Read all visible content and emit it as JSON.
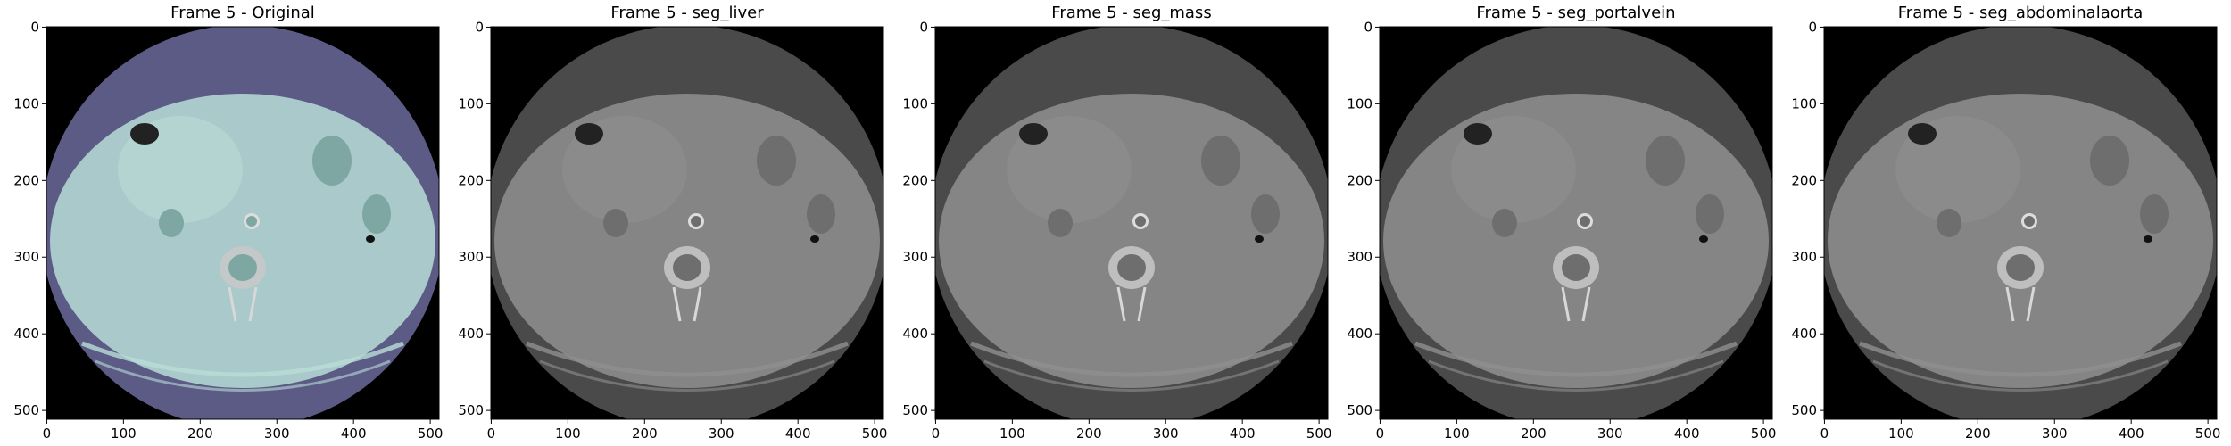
{
  "figure": {
    "panels": [
      {
        "title": "Frame 5 - Original",
        "tint": "#b9ddd6",
        "outer_ring_color": "#5b5b86",
        "x_ticks": [
          "0",
          "100",
          "200",
          "300",
          "400",
          "500"
        ],
        "y_ticks": [
          "0",
          "100",
          "200",
          "300",
          "400",
          "500"
        ]
      },
      {
        "title": "Frame 5 - seg_liver",
        "tint": "#8f8f8f",
        "outer_ring_color": "#4a4a4a",
        "x_ticks": [
          "0",
          "100",
          "200",
          "300",
          "400",
          "500"
        ],
        "y_ticks": [
          "0",
          "100",
          "200",
          "300",
          "400",
          "500"
        ]
      },
      {
        "title": "Frame 5 - seg_mass",
        "tint": "#8f8f8f",
        "outer_ring_color": "#4a4a4a",
        "x_ticks": [
          "0",
          "100",
          "200",
          "300",
          "400",
          "500"
        ],
        "y_ticks": [
          "0",
          "100",
          "200",
          "300",
          "400",
          "500"
        ]
      },
      {
        "title": "Frame 5 - seg_portalvein",
        "tint": "#8f8f8f",
        "outer_ring_color": "#4a4a4a",
        "x_ticks": [
          "0",
          "100",
          "200",
          "300",
          "400",
          "500"
        ],
        "y_ticks": [
          "0",
          "100",
          "200",
          "300",
          "400",
          "500"
        ]
      },
      {
        "title": "Frame 5 - seg_abdominalaorta",
        "tint": "#8f8f8f",
        "outer_ring_color": "#4a4a4a",
        "x_ticks": [
          "0",
          "100",
          "200",
          "300",
          "400",
          "500"
        ],
        "y_ticks": [
          "0",
          "100",
          "200",
          "300",
          "400",
          "500"
        ]
      }
    ]
  }
}
